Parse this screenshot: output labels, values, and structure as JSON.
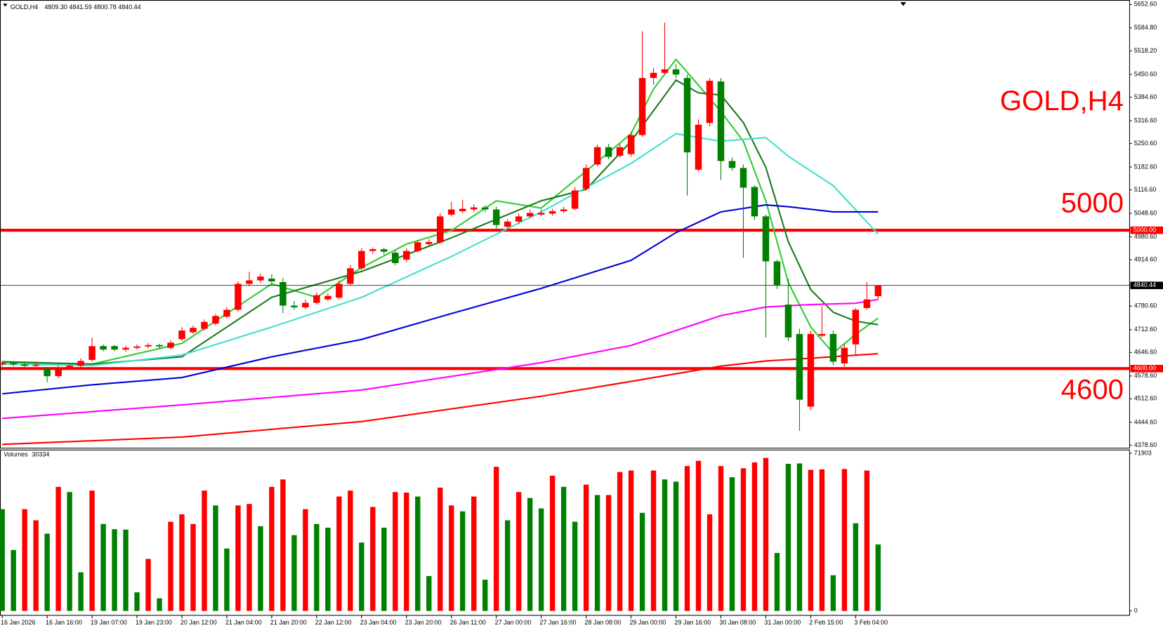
{
  "chart_data": {
    "type": "candlestick",
    "title": "GOLD,H4",
    "header": "4809.30 4841.59 4800.78 4840.44",
    "categories": [
      "16 Jan 2026",
      null,
      null,
      null,
      "16 Jan 16:00",
      null,
      null,
      null,
      "19 Jan 07:00",
      null,
      null,
      null,
      "19 Jan 23:00",
      null,
      null,
      null,
      "20 Jan 12:00",
      null,
      null,
      null,
      "21 Jan 04:00",
      null,
      null,
      null,
      "21 Jan 20:00",
      null,
      null,
      null,
      "22 Jan 12:00",
      null,
      null,
      null,
      "23 Jan 04:00",
      null,
      null,
      null,
      "23 Jan 20:00",
      null,
      null,
      null,
      "26 Jan 11:00",
      null,
      null,
      null,
      "27 Jan 00:00",
      null,
      null,
      null,
      "27 Jan 16:00",
      null,
      null,
      null,
      "28 Jan 08:00",
      null,
      null,
      null,
      "29 Jan 00:00",
      null,
      null,
      null,
      "29 Jan 16:00",
      null,
      null,
      null,
      "30 Jan 08:00",
      null,
      null,
      null,
      "31 Jan 00:00",
      null,
      null,
      null,
      "2 Feb 15:00",
      null,
      null,
      null,
      "3 Feb 04:00",
      null,
      null
    ],
    "candles": {
      "up_color": "#ff0000",
      "down_color": "#008000",
      "open": [
        4612,
        4616,
        4612,
        4608,
        4600,
        4578,
        4600,
        4608,
        4625,
        4665,
        4665,
        4655,
        4660,
        4664,
        4668,
        4660,
        4685,
        4705,
        4715,
        4730,
        4750,
        4770,
        4845,
        4855,
        4860,
        4850,
        4782,
        4777,
        4790,
        4800,
        4805,
        4845,
        4890,
        4940,
        4945,
        4935,
        4915,
        4940,
        4960,
        4965,
        5045,
        5055,
        5060,
        5066,
        5060,
        5010,
        5025,
        5040,
        5045,
        5048,
        5055,
        5062,
        5120,
        5190,
        5240,
        5215,
        5220,
        5275,
        5440,
        5455,
        5465,
        5440,
        5175,
        5310,
        5430,
        5200,
        5180,
        5125,
        5040,
        4910,
        4785,
        4700,
        4490,
        4695,
        4700,
        4615,
        4670,
        4775,
        4809.3
      ],
      "high": [
        4622,
        4620,
        4616,
        4618,
        4605,
        4608,
        4614,
        4630,
        4690,
        4670,
        4668,
        4666,
        4670,
        4674,
        4672,
        4682,
        4720,
        4725,
        4742,
        4758,
        4778,
        4852,
        4880,
        4875,
        4872,
        4862,
        4795,
        4800,
        4820,
        4818,
        4855,
        4900,
        4948,
        4950,
        4950,
        4942,
        4948,
        4972,
        4975,
        5050,
        5082,
        5088,
        5075,
        5072,
        5068,
        5032,
        5048,
        5060,
        5060,
        5062,
        5068,
        5125,
        5190,
        5248,
        5250,
        5250,
        5285,
        5575,
        5470,
        5600,
        5480,
        5450,
        5320,
        5440,
        5440,
        5210,
        5190,
        5130,
        5045,
        4915,
        4860,
        4715,
        4710,
        4780,
        4710,
        4670,
        4775,
        4850,
        4841.59
      ],
      "low": [
        4606,
        4606,
        4602,
        4600,
        4560,
        4572,
        4596,
        4602,
        4620,
        4650,
        4650,
        4648,
        4655,
        4658,
        4658,
        4656,
        4680,
        4700,
        4710,
        4725,
        4745,
        4765,
        4838,
        4848,
        4845,
        4760,
        4770,
        4772,
        4785,
        4795,
        4800,
        4840,
        4885,
        4932,
        4930,
        4898,
        4908,
        4935,
        4955,
        4960,
        5040,
        5050,
        5052,
        5052,
        5005,
        5000,
        5018,
        5035,
        5040,
        5042,
        5050,
        5058,
        5115,
        5185,
        5205,
        5210,
        5212,
        5270,
        5420,
        5450,
        5440,
        5100,
        5170,
        5300,
        5145,
        5172,
        4920,
        5030,
        4690,
        4830,
        4680,
        4420,
        4480,
        4690,
        4610,
        4605,
        4640,
        4770,
        4800.78
      ],
      "close": [
        4616,
        4612,
        4608,
        4611,
        4578,
        4600,
        4608,
        4622,
        4665,
        4655,
        4655,
        4660,
        4664,
        4668,
        4664,
        4675,
        4710,
        4718,
        4735,
        4752,
        4770,
        4845,
        4855,
        4866,
        4852,
        4782,
        4777,
        4790,
        4812,
        4810,
        4845,
        4890,
        4940,
        4945,
        4938,
        4905,
        4940,
        4965,
        4966,
        5040,
        5060,
        5062,
        5066,
        5060,
        5015,
        5025,
        5040,
        5050,
        5050,
        5055,
        5060,
        5115,
        5180,
        5240,
        5212,
        5240,
        5275,
        5440,
        5455,
        5465,
        5450,
        5225,
        5305,
        5432,
        5200,
        5180,
        5123,
        5040,
        4910,
        4840,
        4690,
        4510,
        4700,
        4700,
        4620,
        4660,
        4770,
        4800,
        4840.44
      ]
    },
    "ylim": [
      4370,
      5665.5
    ],
    "yticks": [
      {
        "value": 5652.6,
        "label": "5652.60"
      },
      {
        "value": 5584.8,
        "label": "5584.80"
      },
      {
        "value": 5518.2,
        "label": "5518.20"
      },
      {
        "value": 5450.6,
        "label": "5450.60"
      },
      {
        "value": 5384.6,
        "label": "5384.60"
      },
      {
        "value": 5316.6,
        "label": "5316.60"
      },
      {
        "value": 5250.6,
        "label": "5250.60"
      },
      {
        "value": 5182.6,
        "label": "5182.60"
      },
      {
        "value": 5116.6,
        "label": "5116.60"
      },
      {
        "value": 5048.6,
        "label": "5048.60"
      },
      {
        "value": 4980.6,
        "label": "4980.60"
      },
      {
        "value": 4914.6,
        "label": "4914.60"
      },
      {
        "value": 4780.6,
        "label": "4780.60"
      },
      {
        "value": 4712.6,
        "label": "4712.60"
      },
      {
        "value": 4646.6,
        "label": "4646.60"
      },
      {
        "value": 4578.6,
        "label": "4578.60"
      },
      {
        "value": 4512.6,
        "label": "4512.60"
      },
      {
        "value": 4444.6,
        "label": "4444.60"
      },
      {
        "value": 4378.6,
        "label": "4378.60"
      }
    ],
    "hlines": [
      {
        "value": 5000,
        "axis_label": "5000.00",
        "color": "#ff0000"
      },
      {
        "value": 4600,
        "axis_label": "4600.00",
        "color": "#ff0000"
      }
    ],
    "lines": [
      {
        "color": "#32cd32",
        "x": [
          0,
          8,
          16,
          24,
          28,
          32,
          36,
          40,
          44,
          48,
          52,
          56,
          58,
          60,
          62,
          64,
          66,
          68,
          70,
          72,
          74,
          76,
          78
        ],
        "values": [
          4618,
          4613,
          4673,
          4845,
          4806,
          4892,
          4960,
          4999,
          5085,
          5064,
          5171,
          5279,
          5408,
          5494,
          5419,
          5343,
          5257,
          5085,
          4849,
          4720,
          4645,
          4699,
          4746
        ]
      },
      {
        "color": "#1e7b1e",
        "x": [
          0,
          8,
          16,
          24,
          32,
          40,
          48,
          52,
          56,
          60,
          62,
          64,
          66,
          68,
          70,
          72,
          74,
          76,
          78
        ],
        "values": [
          4620,
          4613,
          4634,
          4806,
          4881,
          4978,
          5085,
          5118,
          5257,
          5434,
          5397,
          5391,
          5311,
          5182,
          4967,
          4828,
          4763,
          4737,
          4727
        ]
      },
      {
        "color": "#40e0d0",
        "x": [
          0,
          8,
          16,
          24,
          32,
          40,
          48,
          56,
          60,
          64,
          68,
          70,
          74,
          78
        ],
        "values": [
          4613,
          4609,
          4639,
          4720,
          4806,
          4924,
          5053,
          5193,
          5279,
          5257,
          5268,
          5214,
          5129,
          4989
        ]
      },
      {
        "color": "#0000dd",
        "x": [
          0,
          8,
          16,
          24,
          32,
          40,
          48,
          56,
          60,
          64,
          68,
          70,
          74,
          78
        ],
        "values": [
          4527,
          4553,
          4574,
          4634,
          4684,
          4759,
          4832,
          4913,
          4993,
          5053,
          5073,
          5068,
          5053,
          5053
        ]
      },
      {
        "color": "#ff00ff",
        "x": [
          0,
          16,
          32,
          48,
          56,
          64,
          68,
          72,
          76,
          78
        ],
        "values": [
          4456,
          4495,
          4538,
          4617,
          4667,
          4753,
          4778,
          4785,
          4789,
          4800
        ]
      },
      {
        "color": "#ff0000",
        "x": [
          0,
          16,
          32,
          48,
          56,
          60,
          64,
          68,
          72,
          78
        ],
        "values": [
          4381,
          4402,
          4447,
          4520,
          4563,
          4585,
          4607,
          4622,
          4630,
          4643
        ]
      }
    ],
    "volume": {
      "label": "Volumes",
      "values": [
        46440,
        27800,
        46440,
        41360,
        35250,
        56610,
        54240,
        17630,
        54920,
        39660,
        37290,
        37100,
        8480,
        23730,
        5760,
        40680,
        44070,
        39660,
        54920,
        48140,
        28480,
        48140,
        48820,
        38650,
        56610,
        60000,
        34580,
        46440,
        39660,
        37970,
        52210,
        54920,
        31200,
        47460,
        37970,
        54240,
        54000,
        52210,
        15930,
        56270,
        48140,
        45430,
        52210,
        14240,
        65770,
        41360,
        54240,
        51530,
        46780,
        61700,
        56610,
        40680,
        57630,
        52880,
        52880,
        63390,
        64070,
        44750,
        64070,
        60000,
        58990,
        66100,
        68480,
        44070,
        66100,
        61020,
        65090,
        67800,
        69830,
        26440,
        67120,
        67300,
        64410,
        64600,
        16270,
        64750,
        40000,
        64070,
        30334
      ],
      "colors": [
        "#008000",
        "#008000",
        "#ff0000",
        "#ff0000",
        "#008000",
        "#ff0000",
        "#008000",
        "#008000",
        "#ff0000",
        "#008000",
        "#008000",
        "#008000",
        "#008000",
        "#ff0000",
        "#008000",
        "#ff0000",
        "#ff0000",
        "#ff0000",
        "#ff0000",
        "#008000",
        "#008000",
        "#ff0000",
        "#ff0000",
        "#008000",
        "#ff0000",
        "#ff0000",
        "#008000",
        "#ff0000",
        "#008000",
        "#008000",
        "#ff0000",
        "#ff0000",
        "#008000",
        "#ff0000",
        "#008000",
        "#ff0000",
        "#ff0000",
        "#008000",
        "#008000",
        "#ff0000",
        "#ff0000",
        "#008000",
        "#ff0000",
        "#008000",
        "#ff0000",
        "#008000",
        "#ff0000",
        "#008000",
        "#008000",
        "#ff0000",
        "#008000",
        "#008000",
        "#ff0000",
        "#008000",
        "#ff0000",
        "#ff0000",
        "#ff0000",
        "#008000",
        "#ff0000",
        "#008000",
        "#008000",
        "#ff0000",
        "#ff0000",
        "#ff0000",
        "#ff0000",
        "#008000",
        "#ff0000",
        "#ff0000",
        "#ff0000",
        "#008000",
        "#008000",
        "#008000",
        "#ff0000",
        "#ff0000",
        "#008000",
        "#ff0000",
        "#008000",
        "#ff0000",
        "#008000"
      ],
      "ylim": [
        0,
        73600
      ],
      "yticks": [
        0,
        71903
      ]
    }
  }
}
